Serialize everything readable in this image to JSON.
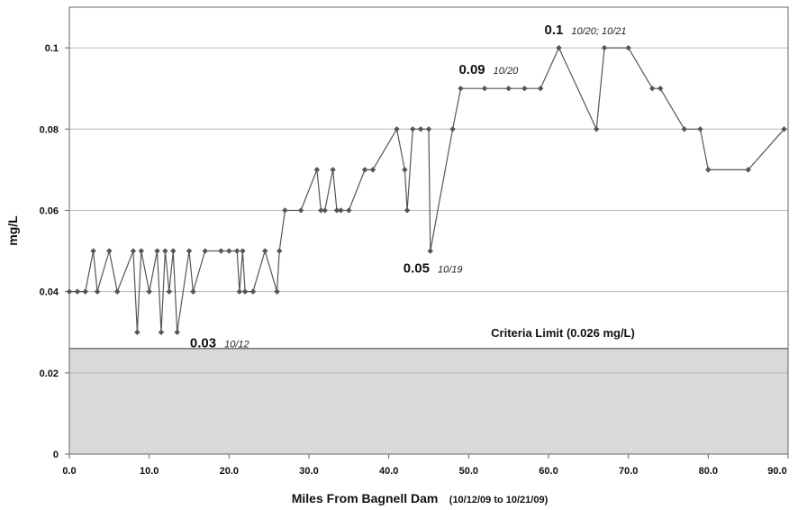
{
  "chart_data": {
    "type": "line",
    "title": "",
    "xlabel": "Miles From Bagnell Dam",
    "xlabel_sub": "(10/12/09 to 10/21/09)",
    "ylabel": "mg/L",
    "xlim": [
      0,
      90
    ],
    "ylim": [
      0,
      0.11
    ],
    "grid": true,
    "x_ticks": [
      "0.0",
      "10.0",
      "20.0",
      "30.0",
      "40.0",
      "50.0",
      "60.0",
      "70.0",
      "80.0",
      "90.0"
    ],
    "x_tick_values": [
      0,
      10,
      20,
      30,
      40,
      50,
      60,
      70,
      80,
      90
    ],
    "y_ticks": [
      "0",
      "0.02",
      "0.04",
      "0.06",
      "0.08",
      "0.1"
    ],
    "y_tick_values": [
      0,
      0.02,
      0.04,
      0.06,
      0.08,
      0.1
    ],
    "criteria_limit": {
      "value": 0.026,
      "label": "Criteria Limit (0.026 mg/L)"
    },
    "colors": {
      "line": "#555555",
      "marker": "#555555",
      "shade": "#d9d9d9",
      "grid": "#b8b8b8",
      "axis": "#666666"
    },
    "series": [
      {
        "x": [
          0,
          1,
          2,
          3,
          3.5,
          5,
          6,
          8,
          8.5,
          9,
          10,
          11,
          11.5,
          12,
          12.5,
          13,
          13.5,
          15,
          15.5,
          17,
          19,
          20,
          21,
          21.3,
          21.7,
          22,
          23,
          24.5,
          26,
          26.3,
          27,
          29,
          31,
          31.5,
          32,
          33,
          33.5,
          34,
          35,
          37,
          38,
          41,
          42,
          42.3,
          43,
          44,
          45,
          45.2,
          48,
          49,
          52,
          55,
          57,
          59,
          61.3,
          66,
          67,
          70,
          73,
          74,
          77,
          79,
          80,
          85,
          89.5
        ],
        "values": [
          0.04,
          0.04,
          0.04,
          0.05,
          0.04,
          0.05,
          0.04,
          0.05,
          0.03,
          0.05,
          0.04,
          0.05,
          0.03,
          0.05,
          0.04,
          0.05,
          0.03,
          0.05,
          0.04,
          0.05,
          0.05,
          0.05,
          0.05,
          0.04,
          0.05,
          0.04,
          0.04,
          0.05,
          0.04,
          0.05,
          0.06,
          0.06,
          0.07,
          0.06,
          0.06,
          0.07,
          0.06,
          0.06,
          0.06,
          0.07,
          0.07,
          0.08,
          0.07,
          0.06,
          0.08,
          0.08,
          0.08,
          0.05,
          0.08,
          0.09,
          0.09,
          0.09,
          0.09,
          0.09,
          0.1,
          0.08,
          0.1,
          0.1,
          0.09,
          0.09,
          0.08,
          0.08,
          0.07,
          0.07,
          0.08
        ]
      }
    ],
    "annotations": [
      {
        "value": "0.03",
        "date": "10/12",
        "x": 13.3,
        "y": 0.03
      },
      {
        "value": "0.05",
        "date": "10/19",
        "x": 45.2,
        "y": 0.05
      },
      {
        "value": "0.09",
        "date": "10/20",
        "x": 49.0,
        "y": 0.09
      },
      {
        "value": "0.1",
        "date": "10/20; 10/21",
        "x": 61.3,
        "y": 0.1
      }
    ]
  }
}
